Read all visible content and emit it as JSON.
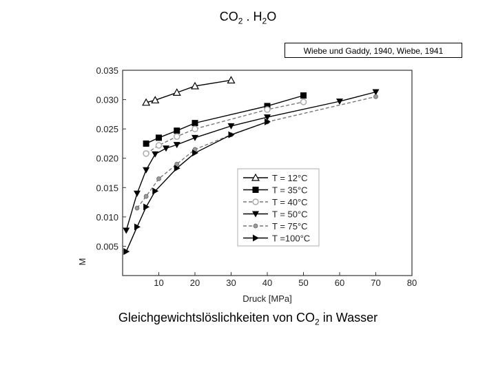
{
  "header": {
    "title_main": "CO",
    "title_sub1": "2",
    "title_mid": " . H",
    "title_sub2": "2",
    "title_end": "O",
    "source": "Wiebe und Gaddy, 1940, Wiebe, 1941"
  },
  "caption": {
    "main": "Gleichgewichtslöslichkeiten von CO",
    "sub": "2",
    "end": " in Wasser"
  },
  "chart_data": {
    "type": "line",
    "xlabel": "Druck [MPa]",
    "ylabel": "M",
    "xlim": [
      0,
      80
    ],
    "ylim": [
      0.0,
      0.035
    ],
    "xticks": [
      "10",
      "20",
      "30",
      "40",
      "50",
      "60",
      "70",
      "80"
    ],
    "yticks": [
      "0.005",
      "0.010",
      "0.015",
      "0.020",
      "0.025",
      "0.030",
      "0.035"
    ],
    "grid": false,
    "legend_position": "center-right",
    "series": [
      {
        "name": "T = 12°C",
        "marker": "triangle-up-open",
        "color": "#000000",
        "x": [
          6.5,
          9,
          15,
          20,
          30
        ],
        "y": [
          0.0295,
          0.0299,
          0.0312,
          0.0323,
          0.0333
        ]
      },
      {
        "name": "T = 35°C",
        "marker": "square-filled",
        "color": "#000000",
        "x": [
          6.5,
          10,
          15,
          20,
          40,
          50
        ],
        "y": [
          0.0225,
          0.0235,
          0.0247,
          0.026,
          0.0289,
          0.0307
        ]
      },
      {
        "name": "T = 40°C",
        "marker": "circle-open-grey",
        "color": "#888888",
        "x": [
          6.5,
          10,
          15,
          20,
          40,
          50
        ],
        "y": [
          0.0208,
          0.0222,
          0.0237,
          0.025,
          0.0283,
          0.0296
        ]
      },
      {
        "name": "T = 50°C",
        "marker": "triangle-down-filled",
        "color": "#000000",
        "x": [
          1,
          4,
          6.5,
          9,
          12,
          15,
          20,
          30,
          40,
          60,
          70
        ],
        "y": [
          0.0077,
          0.014,
          0.018,
          0.0207,
          0.0217,
          0.0223,
          0.0235,
          0.0255,
          0.027,
          0.0297,
          0.0313
        ]
      },
      {
        "name": "T = 75°C",
        "marker": "star-grey",
        "color": "#888888",
        "x": [
          4,
          6.5,
          10,
          15,
          20,
          30,
          40,
          70
        ],
        "y": [
          0.0115,
          0.0135,
          0.0165,
          0.019,
          0.0215,
          0.024,
          0.0262,
          0.0305
        ]
      },
      {
        "name": "T =100°C",
        "marker": "triangle-right-filled",
        "color": "#000000",
        "x": [
          1,
          4,
          6.5,
          9,
          15,
          20,
          30,
          40
        ],
        "y": [
          0.0041,
          0.0083,
          0.0117,
          0.0144,
          0.0183,
          0.0209,
          0.024,
          0.0262
        ]
      }
    ]
  }
}
